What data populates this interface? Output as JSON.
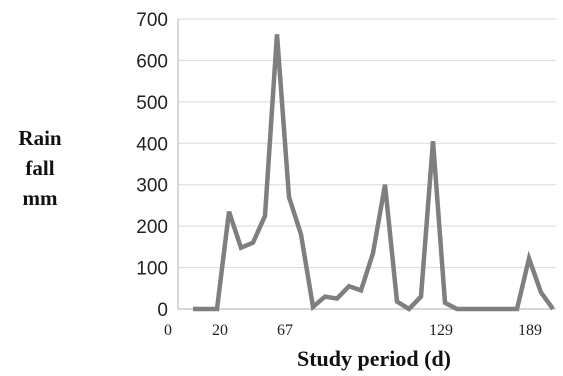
{
  "chart_data": {
    "type": "line",
    "xlabel": "Study period (d)",
    "ylabel_lines": [
      "Rain",
      "fall",
      "mm"
    ],
    "ylim": [
      0,
      700
    ],
    "y_ticks": [
      "0",
      "100",
      "200",
      "300",
      "400",
      "500",
      "600",
      "700"
    ],
    "x_tick_labels": [
      "0",
      "20",
      "67",
      "129",
      "189"
    ],
    "grid": "horizontal",
    "line_color": "#7f7f7f",
    "series": [
      {
        "values": [
          0,
          0,
          0,
          235,
          148,
          160,
          225,
          663,
          270,
          180,
          5,
          30,
          25,
          55,
          45,
          135,
          300,
          18,
          0,
          30,
          405,
          15,
          0,
          0,
          0,
          0,
          0,
          0,
          122,
          40,
          0
        ]
      }
    ]
  }
}
